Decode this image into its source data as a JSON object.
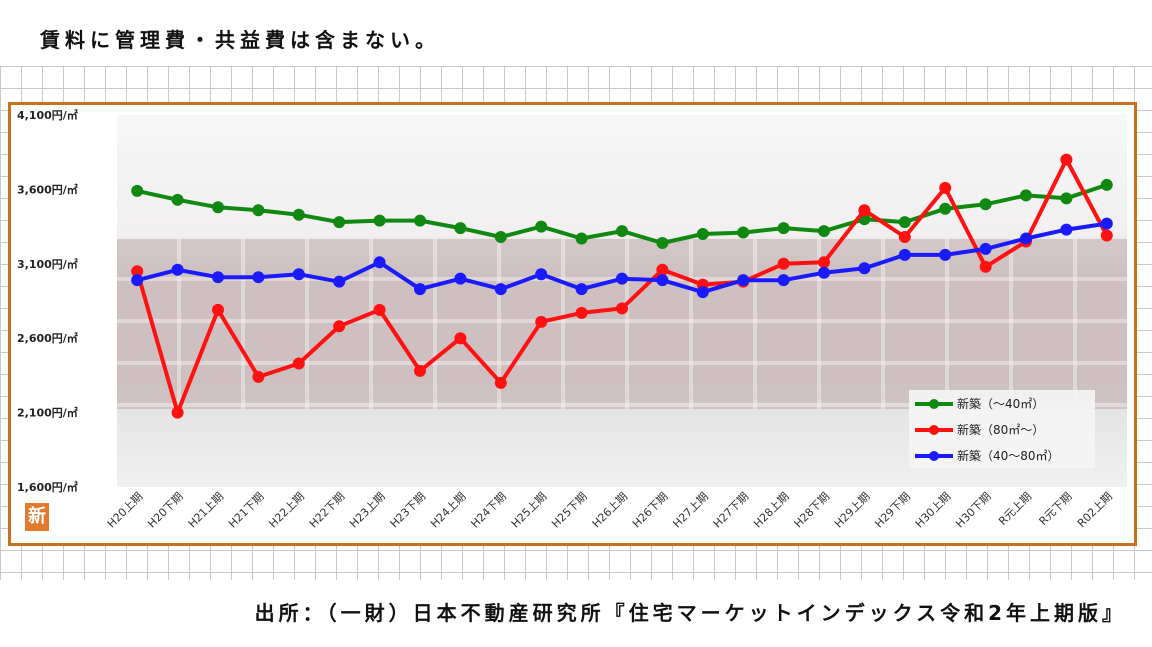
{
  "note": "賃料に管理費・共益費は含まない。",
  "source": "出所：（一財）日本不動産研究所『住宅マーケットインデックス令和2年上期版』",
  "badge": "新",
  "chart_data": {
    "type": "line",
    "title": "",
    "xlabel": "",
    "ylabel": "",
    "ylim": [
      1600,
      4100
    ],
    "yticks": [
      1600,
      2100,
      2600,
      3100,
      3600,
      4100
    ],
    "ytick_labels": [
      "1,600円/㎡",
      "2,100円/㎡",
      "2,600円/㎡",
      "3,100円/㎡",
      "3,600円/㎡",
      "4,100円/㎡"
    ],
    "grid": false,
    "legend_position": "bottom-right",
    "categories": [
      "H20上期",
      "H20下期",
      "H21上期",
      "H21下期",
      "H22上期",
      "H22下期",
      "H23上期",
      "H23下期",
      "H24上期",
      "H24下期",
      "H25上期",
      "H25下期",
      "H26上期",
      "H26下期",
      "H27上期",
      "H27下期",
      "H28上期",
      "H28下期",
      "H29上期",
      "H29下期",
      "H30上期",
      "H30下期",
      "R元上期",
      "R元下期",
      "R02上期"
    ],
    "series": [
      {
        "name": "新築（～40㎡）",
        "color": "#118811",
        "values": [
          3590,
          3530,
          3480,
          3460,
          3430,
          3380,
          3390,
          3390,
          3340,
          3280,
          3350,
          3270,
          3320,
          3240,
          3300,
          3310,
          3340,
          3320,
          3400,
          3380,
          3470,
          3500,
          3560,
          3540,
          3630
        ]
      },
      {
        "name": "新築（80㎡～）",
        "color": "#ff1111",
        "values": [
          3050,
          2100,
          2790,
          2340,
          2430,
          2680,
          2790,
          2380,
          2600,
          2300,
          2710,
          2770,
          2800,
          3060,
          2960,
          2980,
          3100,
          3110,
          3460,
          3280,
          3610,
          3080,
          3250,
          3800,
          3290
        ]
      },
      {
        "name": "新築（40～80㎡）",
        "color": "#1a1aff",
        "values": [
          2990,
          3060,
          3010,
          3010,
          3030,
          2980,
          3110,
          2930,
          3000,
          2930,
          3030,
          2930,
          3000,
          2990,
          2910,
          2990,
          2990,
          3040,
          3070,
          3160,
          3160,
          3200,
          3270,
          3330,
          3370
        ]
      }
    ]
  }
}
